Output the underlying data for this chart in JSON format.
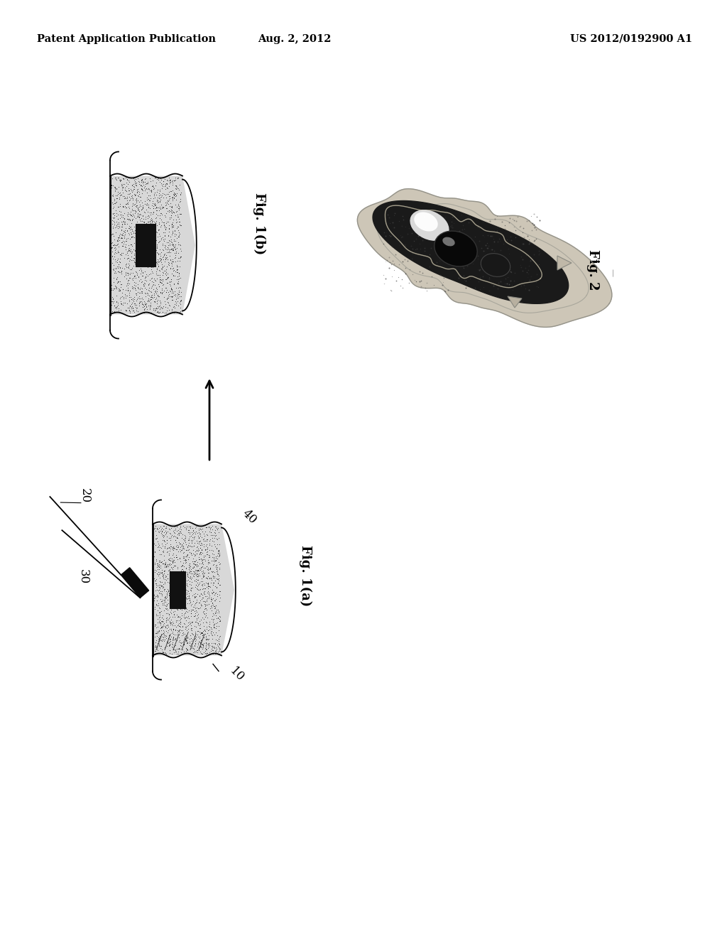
{
  "background_color": "#ffffff",
  "header_left": "Patent Application Publication",
  "header_center": "Aug. 2, 2012",
  "header_right": "US 2012/0192900 A1",
  "fig1a_label": "Fig. 1(a)",
  "fig1b_label": "Fig. 1(b)",
  "fig2_label": "Fig. 2",
  "label_10": "10",
  "label_20": "20",
  "label_30": "30",
  "label_40": "40"
}
